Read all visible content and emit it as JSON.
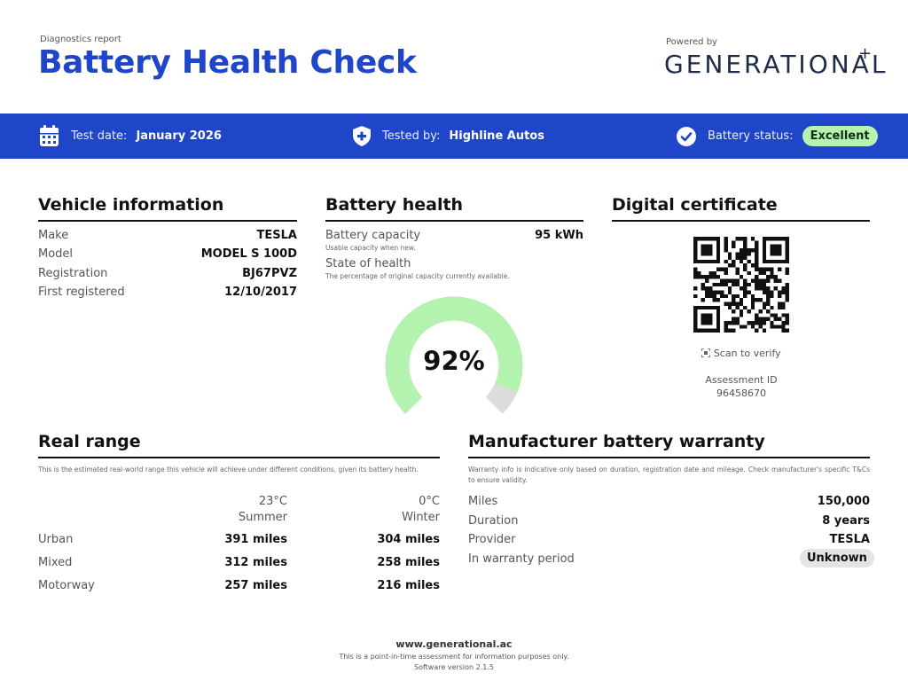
{
  "header": {
    "subtitle": "Diagnostics report",
    "title": "Battery Health Check",
    "powered_by": "Powered by",
    "brand": "GENERATIONAL",
    "brand_mark": "+"
  },
  "band": {
    "test_date_label": "Test date:",
    "test_date_value": "January 2026",
    "tested_by_label": "Tested by:",
    "tested_by_value": "Highline Autos",
    "status_label": "Battery status:",
    "status_value": "Excellent",
    "colors": {
      "band": "#1f46c8",
      "status_pill": "#b8f2b0"
    }
  },
  "vehicle": {
    "title": "Vehicle information",
    "rows": [
      {
        "label": "Make",
        "value": "TESLA"
      },
      {
        "label": "Model",
        "value": "MODEL S 100D"
      },
      {
        "label": "Registration",
        "value": "BJ67PVZ"
      },
      {
        "label": "First registered",
        "value": "12/10/2017"
      }
    ]
  },
  "battery": {
    "title": "Battery health",
    "capacity_label": "Battery capacity",
    "capacity_note": "Usable capacity when new.",
    "capacity_value": "95 kWh",
    "soh_label": "State of health",
    "soh_note": "The percentage of original capacity currently available.",
    "soh_display": "92%",
    "soh_fraction": 0.92,
    "gauge_colors": {
      "filled": "#b4f2b0",
      "remaining": "#dcdcdc"
    }
  },
  "certificate": {
    "title": "Digital certificate",
    "scan_icon": "qr-scan-icon",
    "scan_label": "Scan to verify",
    "assessment_label": "Assessment ID",
    "assessment_id": "96458670"
  },
  "range": {
    "title": "Real range",
    "note": "This is the estimated real-world range this vehicle will achieve under different conditions, given its battery health.",
    "columns": [
      {
        "temp": "23°C",
        "season": "Summer"
      },
      {
        "temp": "0°C",
        "season": "Winter"
      }
    ],
    "rows": [
      {
        "label": "Urban",
        "summer": "391 miles",
        "winter": "304 miles"
      },
      {
        "label": "Mixed",
        "summer": "312 miles",
        "winter": "258 miles"
      },
      {
        "label": "Motorway",
        "summer": "257 miles",
        "winter": "216 miles"
      }
    ]
  },
  "warranty": {
    "title": "Manufacturer battery warranty",
    "note": "Warranty info is indicative only based on duration, registration date and mileage. Check manufacturer's specific T&Cs to ensure validity.",
    "rows": [
      {
        "label": "Miles",
        "value": "150,000"
      },
      {
        "label": "Duration",
        "value": "8 years"
      },
      {
        "label": "Provider",
        "value": "TESLA"
      }
    ],
    "period_label": "In warranty period",
    "period_value": "Unknown"
  },
  "footer": {
    "url": "www.generational.ac",
    "disclaimer": "This is a point-in-time assessment for information purposes only.",
    "version": "Software version 2.1.5"
  }
}
